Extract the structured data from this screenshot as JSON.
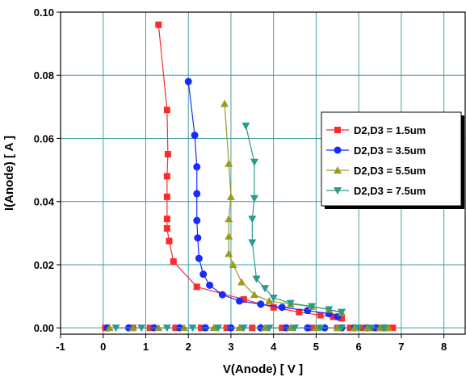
{
  "chart_data": {
    "type": "scatter",
    "title": "",
    "xlabel": "V(Anode) [ V ]",
    "ylabel": "I(Anode) [ A ]",
    "xlim": [
      -1,
      8.5
    ],
    "ylim": [
      -0.002,
      0.1
    ],
    "x_ticks": [
      "-1",
      "0",
      "1",
      "2",
      "3",
      "4",
      "5",
      "6",
      "7",
      "8"
    ],
    "y_ticks": [
      "0.00",
      "0.02",
      "0.04",
      "0.06",
      "0.08",
      "0.10"
    ],
    "grid": true,
    "legend_position": "right",
    "series": [
      {
        "name": "D2,D3 = 1.5um",
        "color": "#ff2a2a",
        "marker": "square",
        "x": [
          1.3,
          1.5,
          1.52,
          1.5,
          1.5,
          1.5,
          1.5,
          1.55,
          1.65,
          2.2,
          3.3,
          4.0,
          4.6,
          5.1,
          5.4,
          5.6
        ],
        "y": [
          0.096,
          0.069,
          0.055,
          0.048,
          0.0415,
          0.0345,
          0.0315,
          0.0275,
          0.021,
          0.013,
          0.009,
          0.0065,
          0.005,
          0.004,
          0.0035,
          0.003
        ],
        "baseline_x": [
          0.05,
          0.7,
          1.1,
          1.7,
          2.3,
          2.9,
          3.5,
          4.2,
          4.9,
          5.5,
          5.8,
          6.1,
          6.3,
          6.5,
          6.6,
          6.8
        ],
        "baseline_y": [
          0,
          0,
          0,
          0,
          0,
          0,
          0,
          0,
          0,
          0,
          0,
          0,
          0,
          0,
          0,
          0
        ]
      },
      {
        "name": "D2,D3 = 3.5um",
        "color": "#1a2aff",
        "marker": "circle",
        "x": [
          2.0,
          2.15,
          2.2,
          2.2,
          2.2,
          2.22,
          2.25,
          2.35,
          2.5,
          2.8,
          3.2,
          3.7,
          4.2,
          4.8,
          5.3,
          5.5
        ],
        "y": [
          0.078,
          0.061,
          0.051,
          0.0425,
          0.034,
          0.0285,
          0.022,
          0.017,
          0.0135,
          0.0105,
          0.0085,
          0.0075,
          0.0065,
          0.0055,
          0.0045,
          0.0035
        ],
        "baseline_x": [
          0.1,
          0.6,
          1.2,
          1.8,
          2.4,
          3.0,
          3.7,
          4.3,
          4.8,
          5.2,
          5.6,
          5.9,
          6.2,
          6.4,
          6.6
        ],
        "baseline_y": [
          0,
          0,
          0,
          0,
          0,
          0,
          0,
          0,
          0,
          0,
          0,
          0,
          0,
          0,
          0
        ]
      },
      {
        "name": "D2,D3 = 5.5um",
        "color": "#9c9a20",
        "marker": "triangle-up",
        "x": [
          2.85,
          2.95,
          3.0,
          2.95,
          2.95,
          2.95,
          3.05,
          3.25,
          3.55,
          3.9,
          4.4,
          4.9,
          5.3,
          5.6
        ],
        "y": [
          0.071,
          0.052,
          0.0415,
          0.0345,
          0.029,
          0.0235,
          0.02,
          0.0145,
          0.0105,
          0.0085,
          0.0075,
          0.0068,
          0.0058,
          0.0048
        ],
        "baseline_x": [
          0.15,
          0.7,
          1.3,
          1.9,
          2.6,
          3.2,
          3.8,
          4.4,
          5.0,
          5.5,
          5.9,
          6.2,
          6.5,
          6.7
        ],
        "baseline_y": [
          0,
          0,
          0,
          0,
          0,
          0,
          0,
          0,
          0,
          0,
          0,
          0,
          0,
          0
        ]
      },
      {
        "name": "D2,D3 = 7.5um",
        "color": "#2a9a8a",
        "marker": "triangle-down",
        "x": [
          3.35,
          3.55,
          3.55,
          3.5,
          3.5,
          3.6,
          3.8,
          4.0,
          4.4,
          4.9,
          5.3,
          5.6
        ],
        "y": [
          0.064,
          0.0525,
          0.041,
          0.0345,
          0.027,
          0.0155,
          0.0125,
          0.0095,
          0.0078,
          0.0068,
          0.0058,
          0.005
        ],
        "baseline_x": [
          0.3,
          0.9,
          1.5,
          2.1,
          2.7,
          3.3,
          3.9,
          4.5,
          5.1,
          5.6,
          6.0,
          6.3,
          6.6
        ],
        "baseline_y": [
          0,
          0,
          0,
          0,
          0,
          0,
          0,
          0,
          0,
          0,
          0,
          0,
          0
        ]
      }
    ]
  }
}
